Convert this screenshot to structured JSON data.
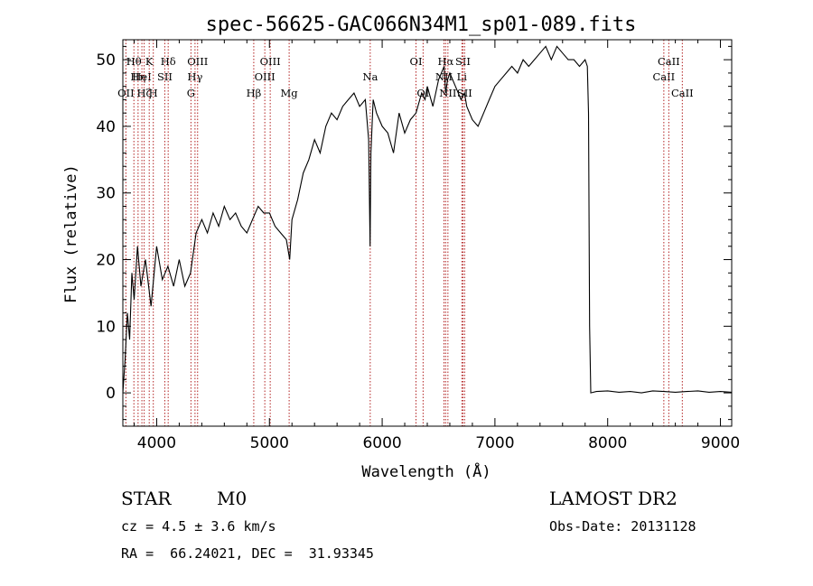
{
  "chart_data": {
    "type": "line",
    "title": "spec-56625-GAC066N34M1_sp01-089.fits",
    "xlabel": "Wavelength (Å)",
    "ylabel": "Flux (relative)",
    "xlim": [
      3700,
      9100
    ],
    "ylim": [
      -5,
      53
    ],
    "xticks": [
      4000,
      5000,
      6000,
      7000,
      8000,
      9000
    ],
    "yticks": [
      0,
      10,
      20,
      30,
      40,
      50
    ],
    "grid": false,
    "series": [
      {
        "x": [
          3700,
          3720,
          3740,
          3760,
          3780,
          3800,
          3830,
          3860,
          3900,
          3950,
          4000,
          4050,
          4100,
          4150,
          4200,
          4250,
          4300,
          4350,
          4400,
          4450,
          4500,
          4550,
          4600,
          4650,
          4700,
          4750,
          4800,
          4850,
          4900,
          4950,
          5000,
          5050,
          5100,
          5150,
          5180,
          5200,
          5250,
          5300,
          5350,
          5400,
          5450,
          5500,
          5550,
          5600,
          5650,
          5700,
          5750,
          5800,
          5850,
          5880,
          5893,
          5900,
          5920,
          5950,
          6000,
          6050,
          6100,
          6150,
          6200,
          6250,
          6300,
          6350,
          6380,
          6400,
          6450,
          6500,
          6550,
          6563,
          6580,
          6600,
          6650,
          6700,
          6730,
          6750,
          6800,
          6850,
          6900,
          6950,
          7000,
          7050,
          7100,
          7150,
          7200,
          7250,
          7300,
          7350,
          7400,
          7450,
          7500,
          7550,
          7600,
          7650,
          7700,
          7750,
          7800,
          7820,
          7830,
          7840,
          7850,
          7900,
          8000,
          8100,
          8200,
          8300,
          8400,
          8500,
          8600,
          8700,
          8800,
          8900,
          9000,
          9100
        ],
        "y": [
          0,
          5,
          12,
          8,
          18,
          14,
          22,
          16,
          20,
          13,
          22,
          17,
          19,
          16,
          20,
          16,
          18,
          24,
          26,
          24,
          27,
          25,
          28,
          26,
          27,
          25,
          24,
          26,
          28,
          27,
          27,
          25,
          24,
          23,
          20,
          26,
          29,
          33,
          35,
          38,
          36,
          40,
          42,
          41,
          43,
          44,
          45,
          43,
          44,
          38,
          22,
          36,
          44,
          42,
          40,
          39,
          36,
          42,
          39,
          41,
          42,
          45,
          44,
          46,
          43,
          47,
          49,
          45,
          47,
          48,
          46,
          44,
          45,
          43,
          41,
          40,
          42,
          44,
          46,
          47,
          48,
          49,
          48,
          50,
          49,
          50,
          51,
          52,
          50,
          52,
          51,
          50,
          50,
          49,
          50,
          49,
          42,
          10,
          0,
          0.2,
          0.3,
          0.1,
          0.2,
          0,
          0.3,
          0.2,
          0.1,
          0.2,
          0.3,
          0.1,
          0.2,
          0.1
        ]
      }
    ],
    "emission_lines": [
      {
        "wl": 3727,
        "label": "OII",
        "row": 2
      },
      {
        "wl": 3798,
        "label": "Hθ",
        "row": 0
      },
      {
        "wl": 3835,
        "label": "Hη",
        "row": 1
      },
      {
        "wl": 3869,
        "label": "HeI",
        "row": 1
      },
      {
        "wl": 3889,
        "label": "Hζ",
        "row": 2
      },
      {
        "wl": 3934,
        "label": "K",
        "row": 0
      },
      {
        "wl": 3970,
        "label": "H",
        "row": 2
      },
      {
        "wl": 4072,
        "label": "SII",
        "row": 1
      },
      {
        "wl": 4102,
        "label": "Hδ",
        "row": 0
      },
      {
        "wl": 4304,
        "label": "G",
        "row": 2
      },
      {
        "wl": 4340,
        "label": "Hγ",
        "row": 1
      },
      {
        "wl": 4363,
        "label": "OIII",
        "row": 0
      },
      {
        "wl": 4861,
        "label": "Hβ",
        "row": 2
      },
      {
        "wl": 4959,
        "label": "OIII",
        "row": 1
      },
      {
        "wl": 5007,
        "label": "OIII",
        "row": 0
      },
      {
        "wl": 5175,
        "label": "Mg",
        "row": 2
      },
      {
        "wl": 5894,
        "label": "Na",
        "row": 1
      },
      {
        "wl": 6300,
        "label": "OI",
        "row": 0
      },
      {
        "wl": 6363,
        "label": "OI",
        "row": 2
      },
      {
        "wl": 6548,
        "label": "NII",
        "row": 1
      },
      {
        "wl": 6563,
        "label": "Hα",
        "row": 0
      },
      {
        "wl": 6583,
        "label": "NII",
        "row": 2
      },
      {
        "wl": 6707,
        "label": "Li",
        "row": 1
      },
      {
        "wl": 6716,
        "label": "SII",
        "row": 0
      },
      {
        "wl": 6731,
        "label": "SII",
        "row": 2
      },
      {
        "wl": 8498,
        "label": "CaII",
        "row": 1
      },
      {
        "wl": 8542,
        "label": "CaII",
        "row": 0
      },
      {
        "wl": 8662,
        "label": "CaII",
        "row": 2
      }
    ]
  },
  "info": {
    "class": "STAR",
    "subclass": "M0",
    "cz": "cz = 4.5 ± 3.6 km/s",
    "radec": "RA =  66.24021, DEC =  31.93345",
    "survey": "LAMOST DR2",
    "obsdate": "Obs-Date: 20131128"
  }
}
